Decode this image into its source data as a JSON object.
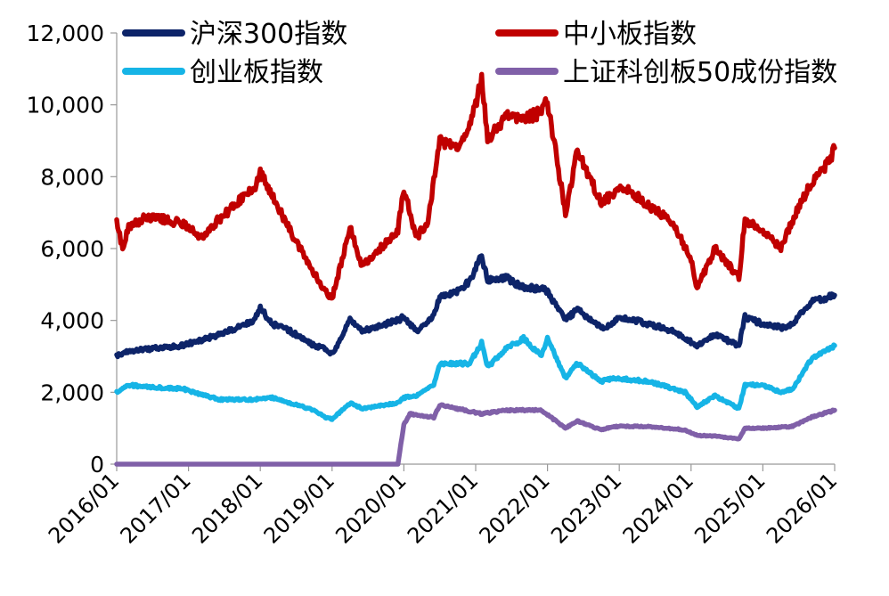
{
  "chart_data": {
    "type": "line",
    "title": "",
    "xlabel": "",
    "ylabel": "",
    "ylim": [
      0,
      12000
    ],
    "yticks": [
      0,
      2000,
      4000,
      6000,
      8000,
      10000,
      12000
    ],
    "ytick_labels": [
      "0",
      "2,000",
      "4,000",
      "6,000",
      "8,000",
      "10,000",
      "12,000"
    ],
    "xticks": [
      "2016/01",
      "2017/01",
      "2018/01",
      "2019/01",
      "2020/01",
      "2021/01",
      "2022/01",
      "2023/01",
      "2024/01",
      "2025/01",
      "2026/01"
    ],
    "xlim": [
      "2016/01",
      "2026/01"
    ],
    "grid": false,
    "legend": "top, two columns",
    "series": [
      {
        "name": "沪深300指数",
        "color": "#0d2469",
        "x": [
          "2016/01",
          "2016/02",
          "2016/06",
          "2016/12",
          "2017/06",
          "2017/12",
          "2018/01",
          "2018/03",
          "2018/06",
          "2018/10",
          "2018/12",
          "2019/01",
          "2019/04",
          "2019/06",
          "2019/09",
          "2019/12",
          "2020/01",
          "2020/03",
          "2020/06",
          "2020/07",
          "2020/10",
          "2020/12",
          "2021/02",
          "2021/03",
          "2021/06",
          "2021/09",
          "2021/12",
          "2022/01",
          "2022/04",
          "2022/06",
          "2022/10",
          "2022/12",
          "2023/01",
          "2023/06",
          "2023/10",
          "2024/01",
          "2024/02",
          "2024/05",
          "2024/09",
          "2024/10",
          "2025/01",
          "2025/04",
          "2025/06",
          "2025/09",
          "2025/12",
          "2026/01"
        ],
        "values": [
          3000,
          3100,
          3200,
          3300,
          3600,
          4000,
          4350,
          3900,
          3700,
          3300,
          3200,
          3050,
          4000,
          3700,
          3850,
          4000,
          4100,
          3700,
          4100,
          4700,
          4800,
          5100,
          5800,
          5100,
          5200,
          4900,
          4900,
          4800,
          4000,
          4300,
          3800,
          3900,
          4100,
          3900,
          3700,
          3400,
          3300,
          3600,
          3300,
          4100,
          3900,
          3800,
          3900,
          4500,
          4650,
          4700
        ]
      },
      {
        "name": "中小板指数",
        "color": "#c00000",
        "x": [
          "2016/01",
          "2016/02",
          "2016/03",
          "2016/06",
          "2016/12",
          "2017/03",
          "2017/06",
          "2017/12",
          "2018/01",
          "2018/03",
          "2018/06",
          "2018/10",
          "2018/12",
          "2019/01",
          "2019/04",
          "2019/06",
          "2019/09",
          "2019/12",
          "2020/01",
          "2020/03",
          "2020/05",
          "2020/07",
          "2020/10",
          "2020/12",
          "2021/01",
          "2021/02",
          "2021/03",
          "2021/06",
          "2021/09",
          "2021/12",
          "2022/01",
          "2022/04",
          "2022/06",
          "2022/10",
          "2022/12",
          "2023/01",
          "2023/06",
          "2023/10",
          "2024/01",
          "2024/02",
          "2024/05",
          "2024/09",
          "2024/10",
          "2025/01",
          "2025/04",
          "2025/06",
          "2025/09",
          "2025/12",
          "2026/01"
        ],
        "values": [
          6700,
          6000,
          6600,
          6900,
          6700,
          6300,
          6800,
          7700,
          8100,
          7500,
          6500,
          5300,
          4800,
          4600,
          6600,
          5500,
          6000,
          6500,
          7700,
          6300,
          6700,
          9000,
          8800,
          9500,
          10000,
          10800,
          9000,
          9700,
          9600,
          9800,
          10100,
          7000,
          8700,
          7300,
          7500,
          7800,
          7200,
          6700,
          5700,
          4900,
          6000,
          5200,
          6800,
          6500,
          6000,
          6800,
          7800,
          8400,
          8800
        ]
      },
      {
        "name": "创业板指数",
        "color": "#16b4e6",
        "x": [
          "2016/01",
          "2016/03",
          "2016/06",
          "2016/12",
          "2017/06",
          "2017/12",
          "2018/03",
          "2018/06",
          "2018/10",
          "2018/12",
          "2019/01",
          "2019/04",
          "2019/06",
          "2019/12",
          "2020/01",
          "2020/03",
          "2020/06",
          "2020/07",
          "2020/12",
          "2021/02",
          "2021/03",
          "2021/06",
          "2021/09",
          "2021/12",
          "2022/01",
          "2022/04",
          "2022/06",
          "2022/10",
          "2022/12",
          "2023/06",
          "2023/12",
          "2024/02",
          "2024/05",
          "2024/09",
          "2024/10",
          "2025/01",
          "2025/04",
          "2025/06",
          "2025/09",
          "2025/12",
          "2026/01"
        ],
        "values": [
          2000,
          2200,
          2150,
          2100,
          1800,
          1800,
          1850,
          1700,
          1500,
          1300,
          1250,
          1700,
          1550,
          1700,
          1850,
          1900,
          2200,
          2800,
          2800,
          3400,
          2700,
          3200,
          3500,
          3000,
          3500,
          2400,
          2800,
          2300,
          2400,
          2300,
          2000,
          1600,
          1900,
          1550,
          2200,
          2200,
          2000,
          2100,
          2900,
          3200,
          3300
        ]
      },
      {
        "name": "上证科创板50成份指数",
        "color": "#8060a8",
        "x": [
          "2016/01",
          "2019/12",
          "2020/01",
          "2020/02",
          "2020/06",
          "2020/07",
          "2021/02",
          "2021/06",
          "2021/09",
          "2021/12",
          "2022/04",
          "2022/06",
          "2022/10",
          "2022/12",
          "2023/06",
          "2023/12",
          "2024/02",
          "2024/05",
          "2024/09",
          "2024/10",
          "2025/01",
          "2025/06",
          "2025/09",
          "2025/12",
          "2026/01"
        ],
        "values": [
          0,
          0,
          1100,
          1400,
          1300,
          1650,
          1400,
          1500,
          1500,
          1500,
          1000,
          1200,
          950,
          1050,
          1050,
          950,
          800,
          780,
          700,
          1000,
          1000,
          1050,
          1300,
          1450,
          1500
        ]
      }
    ]
  }
}
